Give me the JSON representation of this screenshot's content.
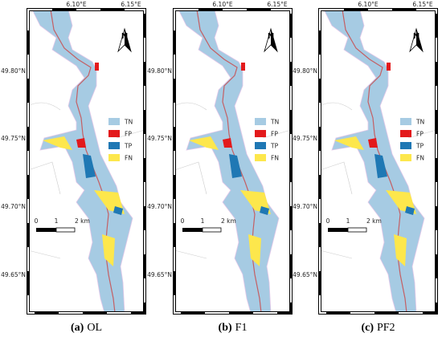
{
  "lon_labels": [
    "6.10°E",
    "6.15°E"
  ],
  "lat_labels": [
    "49.80°N",
    "49.75°N",
    "49.70°N",
    "49.65°N"
  ],
  "north_label": "N",
  "legend": [
    "TN",
    "FP",
    "TP",
    "FN"
  ],
  "scale_bar": [
    "0",
    "1",
    "2 km"
  ],
  "panels": [
    {
      "tag": "(a)",
      "name": "OL"
    },
    {
      "tag": "(b)",
      "name": "F1"
    },
    {
      "tag": "(c)",
      "name": "PF2"
    }
  ]
}
